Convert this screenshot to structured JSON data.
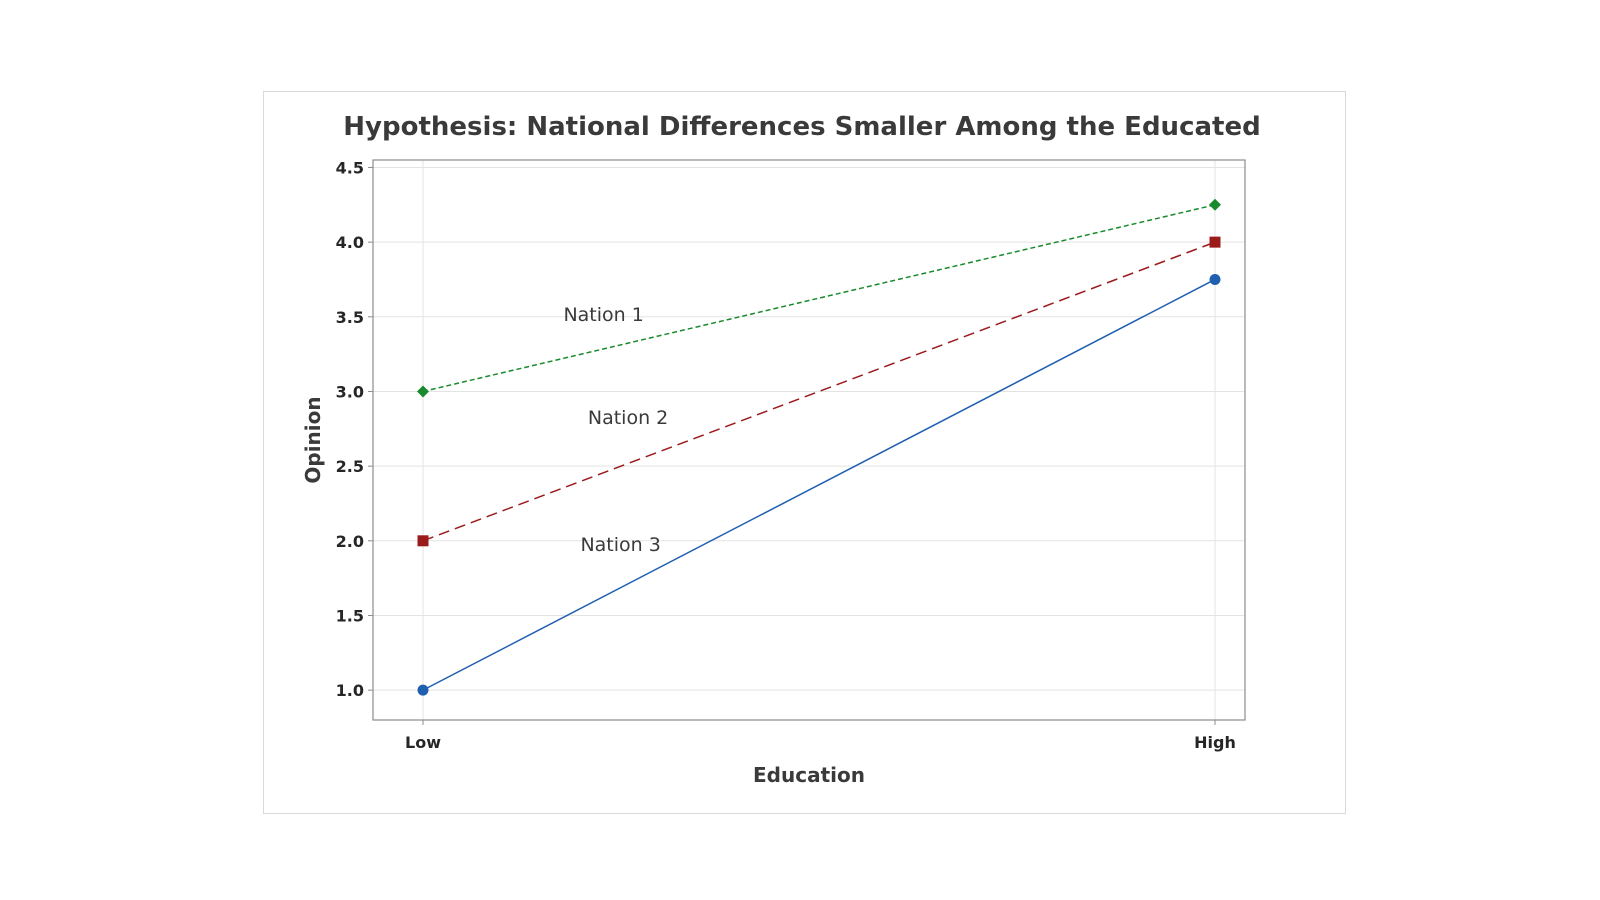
{
  "chart_data": {
    "type": "line",
    "title": "Hypothesis:  National Differences Smaller Among the Educated",
    "xlabel": "Education",
    "ylabel": "Opinion",
    "categories": [
      "Low",
      "High"
    ],
    "ylim": [
      0.8,
      4.55
    ],
    "yticks": [
      "1.0",
      "1.5",
      "2.0",
      "2.5",
      "3.0",
      "3.5",
      "4.0",
      "4.5"
    ],
    "grid": true,
    "series": [
      {
        "name": "Nation 1",
        "values": [
          3.0,
          4.25
        ],
        "color": "#1a8a2e",
        "marker": "diamond",
        "line_style": "dashed-fine"
      },
      {
        "name": "Nation 2",
        "values": [
          2.0,
          4.0
        ],
        "color": "#9b1b1b",
        "marker": "square",
        "line_style": "dashed-long"
      },
      {
        "name": "Nation 3",
        "values": [
          1.0,
          3.75
        ],
        "color": "#1f5fb0",
        "marker": "circle",
        "line_style": "solid"
      }
    ],
    "annotations": [
      {
        "text": "Nation 1",
        "x_frac": 0.2645,
        "y": 3.52
      },
      {
        "text": "Nation 2",
        "x_frac": 0.2925,
        "y": 2.83
      },
      {
        "text": "Nation 3",
        "x_frac": 0.284,
        "y": 1.98
      }
    ]
  }
}
